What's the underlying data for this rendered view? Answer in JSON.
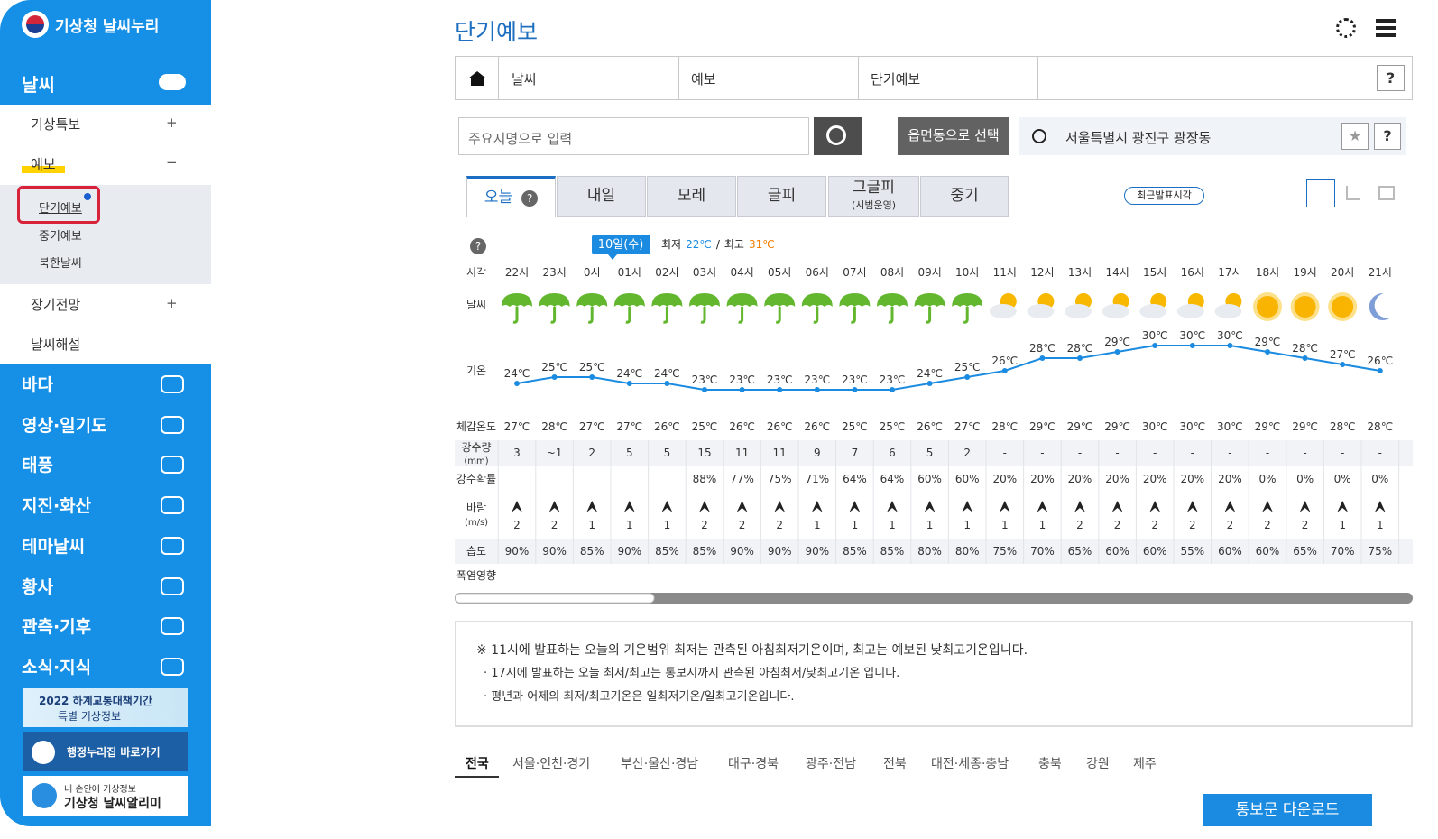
{
  "sidebar": {
    "logo": "기상청 날씨누리",
    "active_section": "날씨",
    "submenu": [
      {
        "label": "기상특보",
        "toggle": "+"
      },
      {
        "label": "예보",
        "toggle": "−",
        "children": [
          "단기예보",
          "중기예보",
          "북한날씨"
        ]
      },
      {
        "label": "장기전망",
        "toggle": "+"
      },
      {
        "label": "날씨해설"
      }
    ],
    "sections": [
      "바다",
      "영상·일기도",
      "태풍",
      "지진·화산",
      "테마날씨",
      "황사",
      "관측·기후",
      "소식·지식"
    ],
    "banner": {
      "title": "2022 하계교통대책기간",
      "subtitle": "특별 기상정보"
    },
    "gov_link": "행정누리집 바로가기",
    "app": {
      "caption": "내 손안에 기상정보",
      "name": "기상청 날씨알리미"
    }
  },
  "header": {
    "title": "단기예보",
    "breadcrumb": [
      "날씨",
      "예보",
      "단기예보"
    ],
    "help": "?"
  },
  "search": {
    "placeholder": "주요지명으로 입력",
    "dong_button": "읍면동으로 선택",
    "location": "서울특별시 광진구 광장동",
    "help": "?"
  },
  "tabs": {
    "items": [
      {
        "label": "오늘",
        "help": "?"
      },
      {
        "label": "내일"
      },
      {
        "label": "모레"
      },
      {
        "label": "글피"
      },
      {
        "label": "그글피",
        "note": "(시범운영)"
      },
      {
        "label": "중기"
      }
    ],
    "active": 0,
    "latest": "최근발표시각"
  },
  "forecast": {
    "help": "?",
    "date": "10일(수)",
    "min_label": "최저",
    "min": "22℃",
    "separator": "/",
    "max_label": "최고",
    "max": "31℃",
    "row_labels": {
      "time": "시각",
      "weather": "날씨",
      "temperature": "기온",
      "feels": "체감온도",
      "rain": "강수량",
      "rain_unit": "(mm)",
      "prob": "강수확률",
      "wind": "바람",
      "wind_unit": "(m/s)",
      "humidity": "습도",
      "heat": "폭염영향"
    },
    "times": [
      "22시",
      "23시",
      "0시",
      "01시",
      "02시",
      "03시",
      "04시",
      "05시",
      "06시",
      "07시",
      "08시",
      "09시",
      "10시",
      "11시",
      "12시",
      "13시",
      "14시",
      "15시",
      "16시",
      "17시",
      "18시",
      "19시",
      "20시",
      "21시"
    ],
    "weather_icons": [
      "rain",
      "rain",
      "rain",
      "rain",
      "rain",
      "rain",
      "rain",
      "rain",
      "rain",
      "rain",
      "rain",
      "rain",
      "rain",
      "partly-cloudy",
      "partly-cloudy",
      "partly-cloudy",
      "partly-cloudy",
      "partly-cloudy",
      "partly-cloudy",
      "partly-cloudy",
      "sunny",
      "sunny",
      "sunny",
      "clear-night"
    ],
    "temperature": {
      "values": [
        24,
        25,
        25,
        24,
        24,
        23,
        23,
        23,
        23,
        23,
        23,
        24,
        25,
        26,
        28,
        28,
        29,
        30,
        30,
        30,
        29,
        28,
        27,
        26
      ],
      "value_labels": [
        "24℃",
        "25℃",
        "25℃",
        "24℃",
        "24℃",
        "23℃",
        "23℃",
        "23℃",
        "23℃",
        "23℃",
        "23℃",
        "24℃",
        "25℃",
        "26℃",
        "28℃",
        "28℃",
        "29℃",
        "30℃",
        "30℃",
        "30℃",
        "29℃",
        "28℃",
        "27℃",
        "26℃"
      ]
    },
    "feels": [
      "27℃",
      "28℃",
      "27℃",
      "27℃",
      "26℃",
      "25℃",
      "26℃",
      "26℃",
      "26℃",
      "25℃",
      "25℃",
      "26℃",
      "27℃",
      "28℃",
      "29℃",
      "29℃",
      "29℃",
      "30℃",
      "30℃",
      "30℃",
      "29℃",
      "29℃",
      "28℃",
      "28℃"
    ],
    "rain": [
      "3",
      "~1",
      "2",
      "5",
      "5",
      "15",
      "11",
      "11",
      "9",
      "7",
      "6",
      "5",
      "2",
      "-",
      "-",
      "-",
      "-",
      "-",
      "-",
      "-",
      "-",
      "-",
      "-",
      "-"
    ],
    "prob": [
      null,
      null,
      null,
      null,
      null,
      "88%",
      "77%",
      "75%",
      "71%",
      "64%",
      "64%",
      "60%",
      "60%",
      "20%",
      "20%",
      "20%",
      "20%",
      "20%",
      "20%",
      "20%",
      "0%",
      "0%",
      "0%",
      "0%"
    ],
    "wind_speed": [
      2,
      2,
      1,
      1,
      1,
      2,
      2,
      2,
      1,
      1,
      1,
      1,
      1,
      1,
      1,
      2,
      2,
      2,
      2,
      2,
      2,
      2,
      1,
      1
    ],
    "humidity": [
      "90%",
      "90%",
      "85%",
      "90%",
      "85%",
      "85%",
      "90%",
      "90%",
      "90%",
      "85%",
      "85%",
      "80%",
      "80%",
      "75%",
      "70%",
      "65%",
      "60%",
      "60%",
      "55%",
      "60%",
      "60%",
      "65%",
      "70%",
      "75%"
    ]
  },
  "notes": [
    "※ 11시에 발표하는 오늘의 기온범위 최저는 관측된 아침최저기온이며, 최고는 예보된 낮최고기온입니다.",
    "· 17시에 발표하는 오늘 최저/최고는 통보시까지 관측된 아침최저/낮최고기온 입니다.",
    "· 평년과 어제의 최저/최고기온은 일최저기온/일최고기온입니다."
  ],
  "regions": {
    "items": [
      "전국",
      "서울·인천·경기",
      "부산·울산·경남",
      "대구·경북",
      "광주·전남",
      "전북",
      "대전·세종·충남",
      "충북",
      "강원",
      "제주"
    ],
    "active": 0
  },
  "download": "통보문 다운로드"
}
